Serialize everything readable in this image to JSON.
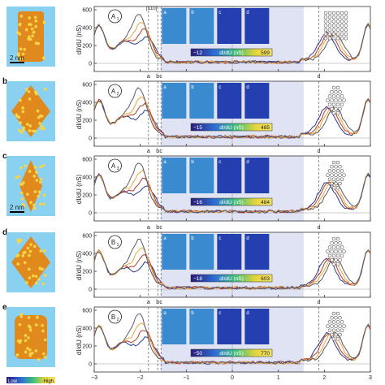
{
  "figure": {
    "ylabel": "dI/dU (nS)",
    "xticks": [
      "−3",
      "−2",
      "−1",
      "0",
      "1",
      "2",
      "3"
    ],
    "yticks": [
      "0",
      "200",
      "400",
      "600"
    ],
    "scalebar": "2 nm",
    "colorbar_low": "Low",
    "colorbar_high": "High",
    "direction_label": "[1̄10]",
    "map_label": "dI/dU (nS)",
    "line_colors": [
      "#2a3a8c",
      "#b83b2a",
      "#e8a83a",
      "#5a5a6a"
    ],
    "map_letters": [
      "a",
      "b",
      "c",
      "d"
    ],
    "panels": [
      {
        "letter": "",
        "badge_main": "A",
        "badge_sub": "1",
        "cb_min": "−12",
        "cb_max": "599"
      },
      {
        "letter": "b",
        "badge_main": "A",
        "badge_sub": "2",
        "cb_min": "−15",
        "cb_max": "485"
      },
      {
        "letter": "c",
        "badge_main": "A",
        "badge_sub": "3",
        "cb_min": "−16",
        "cb_max": "484"
      },
      {
        "letter": "d",
        "badge_main": "B",
        "badge_sub": "1",
        "cb_min": "−18",
        "cb_max": "603"
      },
      {
        "letter": "e",
        "badge_main": "B",
        "badge_sub": "2",
        "cb_min": "−50",
        "cb_max": "770"
      }
    ]
  }
}
